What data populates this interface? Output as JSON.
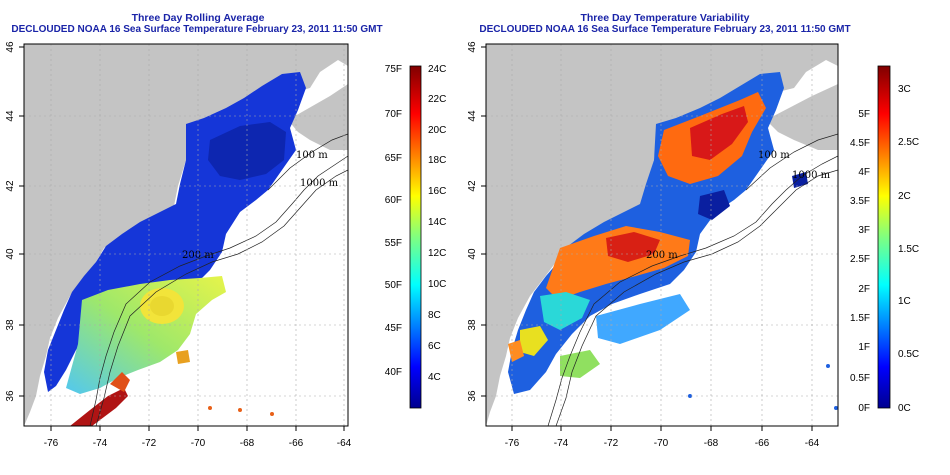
{
  "left_panel": {
    "title_line1": "Three Day Rolling Average",
    "title_line2": "DECLOUDED NOAA 16 Sea Surface Temperature February 23, 2011 11:50 GMT",
    "x_ticks": [
      "-76",
      "-74",
      "-72",
      "-70",
      "-68",
      "-66",
      "-64"
    ],
    "y_ticks": [
      "36",
      "38",
      "40",
      "42",
      "44",
      "46"
    ],
    "colorbar": {
      "fahrenheit": [
        "75F",
        "70F",
        "65F",
        "60F",
        "55F",
        "50F",
        "45F",
        "40F"
      ],
      "celsius": [
        "24C",
        "22C",
        "20C",
        "18C",
        "16C",
        "14C",
        "12C",
        "10C",
        "8C",
        "6C",
        "4C"
      ]
    },
    "isobath_labels": [
      "100 m",
      "1000 m",
      "200 m"
    ]
  },
  "right_panel": {
    "title_line1": "Three Day Temperature Variability",
    "title_line2": "DECLOUDED NOAA 16 Sea Surface Temperature February 23, 2011 11:50 GMT",
    "x_ticks": [
      "-76",
      "-74",
      "-72",
      "-70",
      "-68",
      "-66",
      "-64"
    ],
    "y_ticks": [
      "36",
      "38",
      "40",
      "42",
      "44",
      "46"
    ],
    "colorbar": {
      "fahrenheit": [
        "5F",
        "4.5F",
        "4F",
        "3.5F",
        "3F",
        "2.5F",
        "2F",
        "1.5F",
        "1F",
        "0.5F",
        "0F"
      ],
      "celsius": [
        "3C",
        "2.5C",
        "2C",
        "1.5C",
        "1C",
        "0.5C",
        "0C"
      ]
    },
    "isobath_labels": [
      "100 m",
      "1000 m",
      "200 m"
    ]
  },
  "colors": {
    "title": "#1a24a8",
    "land": "#c4c4c4",
    "ocean": "#ffffff"
  }
}
